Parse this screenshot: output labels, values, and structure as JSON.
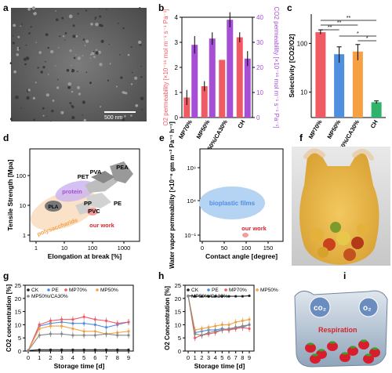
{
  "panels": {
    "a": {
      "label": "a",
      "scale_bar": "500 nm"
    },
    "b": {
      "label": "b"
    },
    "c": {
      "label": "c"
    },
    "d": {
      "label": "d"
    },
    "e": {
      "label": "e"
    },
    "f": {
      "label": "f"
    },
    "g": {
      "label": "g"
    },
    "h": {
      "label": "h"
    },
    "i": {
      "label": "i",
      "text_co2": "co₂",
      "text_o2": "o₂",
      "text_resp": "Respiration"
    }
  },
  "colors": {
    "purple": "#a64fd6",
    "red": "#f05a63",
    "blue": "#4f8fe0",
    "orange": "#f4a043",
    "green": "#2fb36b",
    "gray": "#888888",
    "black": "#222222",
    "bluefill": "#aecbf0",
    "orangefill": "#f8dcc0",
    "purplefill": "#cfb3ee",
    "grayfill": "#bdbdbd",
    "redfill": "#f4a6a6"
  },
  "chart_data": [
    {
      "id": "b",
      "type": "bar",
      "categories": [
        "MP70%",
        "MP50%",
        "MP50%/CA30%",
        "CH"
      ],
      "ylabel": "O2 permeability [×10⁻¹⁶ mol m⁻¹ s⁻¹ Pa⁻¹]",
      "y2label": "CO2 permeability [×10⁻¹⁶ mol m⁻¹ s⁻¹ Pa⁻¹]",
      "ylim": [
        0,
        4
      ],
      "y2lim": [
        0,
        40
      ],
      "yticks": [
        "0",
        "1",
        "2",
        "3",
        "4"
      ],
      "y2ticks": [
        "0",
        "10",
        "20",
        "30",
        "40"
      ],
      "series": [
        {
          "name": "O2",
          "axis": "left",
          "values": [
            0.8,
            1.25,
            2.3,
            3.2
          ],
          "err": [
            0.3,
            0.2,
            0.0,
            0.2
          ]
        },
        {
          "name": "CO2",
          "axis": "right",
          "values": [
            29,
            31.5,
            39,
            23.5
          ],
          "err": [
            3.5,
            2.5,
            3,
            3
          ]
        }
      ]
    },
    {
      "id": "c",
      "type": "bar",
      "categories": [
        "MP70%",
        "MP50%",
        "MP50%/CA30%",
        "CH"
      ],
      "ylabel": "Selectivity [CO2/O2]",
      "yscale": "log",
      "ylim": [
        3,
        400
      ],
      "yticks": [
        "10",
        "100"
      ],
      "values": [
        170,
        60,
        68,
        6.2
      ],
      "err": [
        [
          155,
          190
        ],
        [
          40,
          85
        ],
        [
          45,
          95
        ],
        [
          5.8,
          6.6
        ]
      ],
      "significance": [
        "**",
        "**",
        "**",
        "*",
        "*"
      ]
    },
    {
      "id": "d",
      "type": "scatter",
      "xlabel": "Elongation at break [%]",
      "ylabel": "Tensile Strength [Mpa]",
      "xscale": "log",
      "yscale": "log",
      "xticks": [
        "1",
        "10",
        "100",
        "1000"
      ],
      "yticks": [
        "1",
        "10",
        "100"
      ],
      "regions": [
        "PVA",
        "PEA",
        "PET",
        "protein",
        "PP",
        "PE",
        "PVC",
        "PLA",
        "polysaccharide",
        "our work"
      ]
    },
    {
      "id": "e",
      "type": "scatter",
      "xlabel": "Contact angle [degree]",
      "ylabel": "Water vapor permeability [×10⁻⁶ gm m⁻² Pa⁻¹ h⁻¹]",
      "xticks": [
        "0",
        "50",
        "100",
        "150"
      ],
      "yticks": [
        "10⁻¹",
        "10⁴",
        "10⁹"
      ],
      "regions": [
        "bioplastic films",
        "our work"
      ]
    },
    {
      "id": "g",
      "type": "line",
      "xlabel": "Storage time [d]",
      "ylabel": "CO2 concentration [%]",
      "x": [
        0,
        1,
        2,
        3,
        4,
        5,
        6,
        7,
        8,
        9
      ],
      "ylim": [
        0,
        25
      ],
      "yticks": [
        "0",
        "5",
        "10",
        "15",
        "20",
        "25"
      ],
      "xticks": [
        "0",
        "1",
        "2",
        "3",
        "4",
        "5",
        "6",
        "7",
        "8",
        "9"
      ],
      "series": [
        {
          "name": "CK",
          "values": [
            0.2,
            0.5,
            0.5,
            0.5,
            0.5,
            0.5,
            0.5,
            0.5,
            0.5,
            0.5
          ]
        },
        {
          "name": "PE",
          "values": [
            0.3,
            9.5,
            10.5,
            11,
            10.5,
            10.5,
            10,
            9,
            10,
            11
          ]
        },
        {
          "name": "MP70%",
          "values": [
            0.2,
            10,
            11.5,
            12,
            12,
            13,
            12,
            11.5,
            10.5,
            11
          ]
        },
        {
          "name": "MP50%",
          "values": [
            0.2,
            8.5,
            9.5,
            9.5,
            8.5,
            7.5,
            7.5,
            6.5,
            7,
            7.5
          ]
        },
        {
          "name": "MP50%/CA30%",
          "values": [
            0.2,
            6,
            6.5,
            6.5,
            6,
            6,
            6,
            6.5,
            6,
            6
          ]
        }
      ]
    },
    {
      "id": "h",
      "type": "line",
      "xlabel": "Storage time [d]",
      "ylabel": "O2 Concentration [%]",
      "x": [
        0,
        1,
        2,
        3,
        4,
        5,
        6,
        7,
        8,
        9
      ],
      "ylim": [
        0,
        25
      ],
      "yticks": [
        "0",
        "5",
        "10",
        "15",
        "20",
        "25"
      ],
      "xticks": [
        "0",
        "1",
        "2",
        "3",
        "4",
        "5",
        "6",
        "7",
        "8",
        "9"
      ],
      "series": [
        {
          "name": "CK",
          "values": [
            21,
            20.8,
            20.8,
            20.8,
            20.8,
            20.8,
            20.8,
            20.8,
            20.8,
            21
          ]
        },
        {
          "name": "PE",
          "values": [
            21,
            7,
            7.5,
            8,
            8,
            8.5,
            8,
            9,
            9,
            10
          ]
        },
        {
          "name": "MP70%",
          "values": [
            21,
            5,
            6,
            6.5,
            7,
            8,
            8,
            8.5,
            9,
            8.5
          ]
        },
        {
          "name": "MP50%",
          "values": [
            21,
            8,
            8.5,
            9,
            9.5,
            10,
            10,
            11,
            11.5,
            12
          ]
        },
        {
          "name": "MP50%/CA30%",
          "values": [
            21,
            6.5,
            6,
            7,
            7.5,
            8,
            8.5,
            9,
            9.5,
            10
          ]
        }
      ]
    }
  ]
}
